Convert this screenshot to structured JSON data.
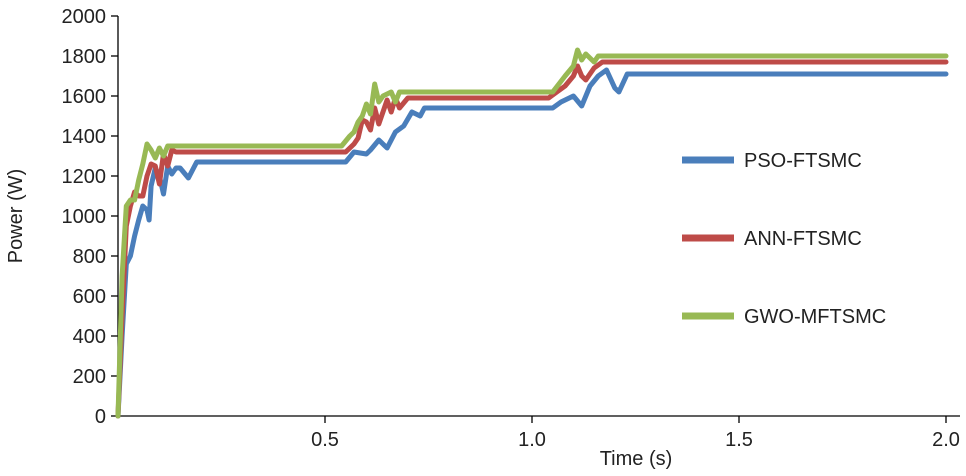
{
  "chart_data": {
    "type": "line",
    "xlabel": "Time (s)",
    "ylabel": "Power (W)",
    "xlim": [
      0,
      2.0
    ],
    "ylim": [
      0,
      2000
    ],
    "x_ticks": [
      0.5,
      1.0,
      1.5,
      2.0
    ],
    "x_tick_labels": [
      "0.5",
      "1.0",
      "1.5",
      "2.0"
    ],
    "y_ticks": [
      0,
      200,
      400,
      600,
      800,
      1000,
      1200,
      1400,
      1600,
      1800,
      2000
    ],
    "y_tick_labels": [
      "0",
      "200",
      "400",
      "600",
      "800",
      "1000",
      "1200",
      "1400",
      "1600",
      "1800",
      "2000"
    ],
    "grid": false,
    "legend_position": "right",
    "series": [
      {
        "name": "PSO-FTSMC",
        "color": "#4a7ebb",
        "points": [
          [
            0.0,
            0
          ],
          [
            0.01,
            400
          ],
          [
            0.02,
            760
          ],
          [
            0.03,
            800
          ],
          [
            0.04,
            900
          ],
          [
            0.05,
            980
          ],
          [
            0.06,
            1050
          ],
          [
            0.07,
            1030
          ],
          [
            0.075,
            980
          ],
          [
            0.08,
            1150
          ],
          [
            0.09,
            1240
          ],
          [
            0.1,
            1200
          ],
          [
            0.11,
            1110
          ],
          [
            0.12,
            1250
          ],
          [
            0.13,
            1210
          ],
          [
            0.14,
            1240
          ],
          [
            0.15,
            1240
          ],
          [
            0.17,
            1190
          ],
          [
            0.19,
            1270
          ],
          [
            0.2,
            1270
          ],
          [
            0.5,
            1270
          ],
          [
            0.55,
            1270
          ],
          [
            0.57,
            1320
          ],
          [
            0.6,
            1310
          ],
          [
            0.61,
            1330
          ],
          [
            0.63,
            1380
          ],
          [
            0.65,
            1340
          ],
          [
            0.67,
            1420
          ],
          [
            0.69,
            1450
          ],
          [
            0.71,
            1520
          ],
          [
            0.73,
            1500
          ],
          [
            0.74,
            1540
          ],
          [
            0.75,
            1540
          ],
          [
            1.0,
            1540
          ],
          [
            1.05,
            1540
          ],
          [
            1.07,
            1570
          ],
          [
            1.1,
            1600
          ],
          [
            1.12,
            1550
          ],
          [
            1.14,
            1650
          ],
          [
            1.16,
            1700
          ],
          [
            1.18,
            1730
          ],
          [
            1.2,
            1640
          ],
          [
            1.21,
            1620
          ],
          [
            1.23,
            1710
          ],
          [
            1.3,
            1710
          ],
          [
            2.0,
            1710
          ]
        ]
      },
      {
        "name": "ANN-FTSMC",
        "color": "#be4b48",
        "points": [
          [
            0.0,
            0
          ],
          [
            0.01,
            500
          ],
          [
            0.02,
            950
          ],
          [
            0.03,
            1050
          ],
          [
            0.04,
            1120
          ],
          [
            0.05,
            1100
          ],
          [
            0.06,
            1100
          ],
          [
            0.07,
            1200
          ],
          [
            0.08,
            1260
          ],
          [
            0.09,
            1250
          ],
          [
            0.1,
            1160
          ],
          [
            0.11,
            1310
          ],
          [
            0.12,
            1250
          ],
          [
            0.13,
            1330
          ],
          [
            0.14,
            1320
          ],
          [
            0.15,
            1320
          ],
          [
            0.5,
            1320
          ],
          [
            0.55,
            1320
          ],
          [
            0.57,
            1360
          ],
          [
            0.58,
            1390
          ],
          [
            0.59,
            1480
          ],
          [
            0.6,
            1470
          ],
          [
            0.61,
            1430
          ],
          [
            0.62,
            1540
          ],
          [
            0.63,
            1460
          ],
          [
            0.65,
            1580
          ],
          [
            0.66,
            1520
          ],
          [
            0.67,
            1590
          ],
          [
            0.68,
            1540
          ],
          [
            0.7,
            1590
          ],
          [
            0.72,
            1590
          ],
          [
            1.0,
            1590
          ],
          [
            1.04,
            1590
          ],
          [
            1.06,
            1620
          ],
          [
            1.08,
            1650
          ],
          [
            1.1,
            1700
          ],
          [
            1.11,
            1750
          ],
          [
            1.12,
            1700
          ],
          [
            1.13,
            1680
          ],
          [
            1.15,
            1740
          ],
          [
            1.17,
            1770
          ],
          [
            1.2,
            1770
          ],
          [
            2.0,
            1770
          ]
        ]
      },
      {
        "name": "GWO-MFTSMC",
        "color": "#98b954",
        "points": [
          [
            0.0,
            0
          ],
          [
            0.01,
            700
          ],
          [
            0.02,
            1050
          ],
          [
            0.03,
            1080
          ],
          [
            0.04,
            1080
          ],
          [
            0.05,
            1180
          ],
          [
            0.06,
            1260
          ],
          [
            0.07,
            1360
          ],
          [
            0.08,
            1330
          ],
          [
            0.09,
            1290
          ],
          [
            0.1,
            1340
          ],
          [
            0.11,
            1300
          ],
          [
            0.12,
            1350
          ],
          [
            0.14,
            1350
          ],
          [
            0.5,
            1350
          ],
          [
            0.54,
            1350
          ],
          [
            0.56,
            1400
          ],
          [
            0.57,
            1420
          ],
          [
            0.58,
            1470
          ],
          [
            0.59,
            1500
          ],
          [
            0.6,
            1560
          ],
          [
            0.61,
            1510
          ],
          [
            0.62,
            1660
          ],
          [
            0.63,
            1570
          ],
          [
            0.64,
            1600
          ],
          [
            0.66,
            1620
          ],
          [
            0.67,
            1570
          ],
          [
            0.68,
            1620
          ],
          [
            0.7,
            1620
          ],
          [
            1.0,
            1620
          ],
          [
            1.05,
            1620
          ],
          [
            1.08,
            1700
          ],
          [
            1.1,
            1750
          ],
          [
            1.11,
            1830
          ],
          [
            1.12,
            1780
          ],
          [
            1.13,
            1810
          ],
          [
            1.15,
            1770
          ],
          [
            1.16,
            1800
          ],
          [
            1.2,
            1800
          ],
          [
            2.0,
            1800
          ]
        ]
      }
    ]
  }
}
